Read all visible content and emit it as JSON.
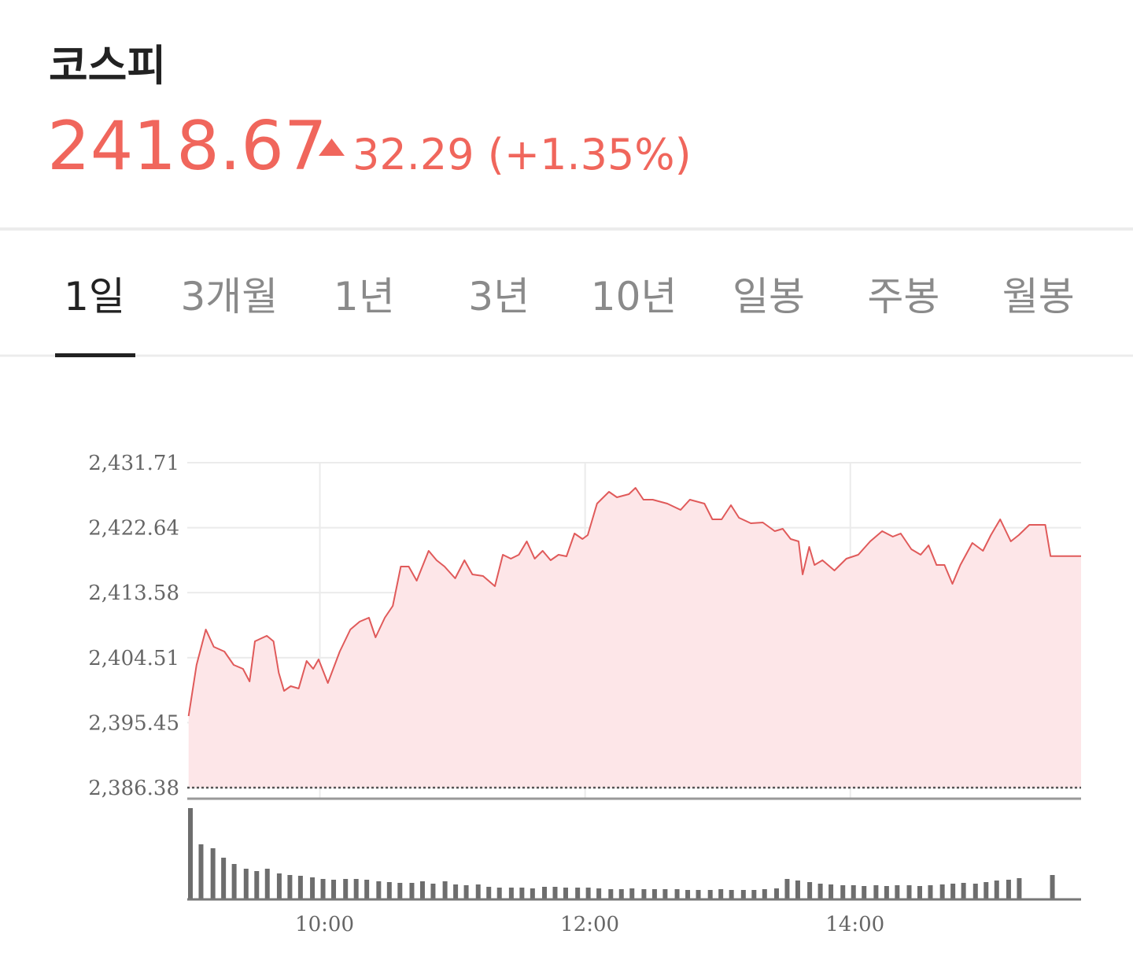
{
  "header": {
    "title": "코스피",
    "price": "2418.67",
    "change": "32.29 (+1.35%)",
    "color": "#f0665c"
  },
  "tabs": {
    "items": [
      "1일",
      "3개월",
      "1년",
      "3년",
      "10년",
      "일봉",
      "주봉",
      "월봉"
    ],
    "selected": 0
  },
  "chart_data": {
    "type": "line",
    "x": [
      9.01,
      9.07,
      9.14,
      9.2,
      9.28,
      9.35,
      9.42,
      9.47,
      9.51,
      9.6,
      9.65,
      9.69,
      9.73,
      9.78,
      9.84,
      9.9,
      9.95,
      9.99,
      10.06,
      10.15,
      10.23,
      10.3,
      10.37,
      10.42,
      10.49,
      10.55,
      10.61,
      10.67,
      10.73,
      10.82,
      10.88,
      10.94,
      11.02,
      11.09,
      11.15,
      11.23,
      11.32,
      11.38,
      11.44,
      11.5,
      11.56,
      11.62,
      11.68,
      11.74,
      11.8,
      11.86,
      11.92,
      11.98,
      12.02,
      12.09,
      12.18,
      12.24,
      12.33,
      12.38,
      12.44,
      12.51,
      12.62,
      12.72,
      12.79,
      12.9,
      12.96,
      13.03,
      13.1,
      13.16,
      13.25,
      13.34,
      13.43,
      13.49,
      13.55,
      13.61,
      13.64,
      13.69,
      13.73,
      13.79,
      13.88,
      13.97,
      14.06,
      14.15,
      14.24,
      14.32,
      14.38,
      14.46,
      14.53,
      14.59,
      14.65,
      14.71,
      14.77,
      14.83,
      14.92,
      15.0,
      15.06,
      15.13,
      15.21,
      15.27,
      15.35,
      15.47,
      15.51,
      15.74
    ],
    "values": [
      2396.37,
      2403.5,
      2408.44,
      2406.03,
      2405.37,
      2403.5,
      2402.95,
      2401.2,
      2406.8,
      2407.56,
      2406.8,
      2402.4,
      2399.88,
      2400.54,
      2400.21,
      2404.05,
      2402.95,
      2404.27,
      2400.98,
      2405.37,
      2408.44,
      2409.54,
      2410.09,
      2407.34,
      2410.09,
      2411.73,
      2417.22,
      2417.22,
      2415.25,
      2419.42,
      2418.1,
      2417.22,
      2415.58,
      2418.1,
      2416.12,
      2415.91,
      2414.48,
      2418.87,
      2418.32,
      2418.87,
      2420.73,
      2418.32,
      2419.42,
      2418.1,
      2418.87,
      2418.65,
      2421.83,
      2421.06,
      2421.61,
      2426.0,
      2427.65,
      2426.88,
      2427.32,
      2428.2,
      2426.55,
      2426.55,
      2426.0,
      2425.13,
      2426.55,
      2426.0,
      2423.81,
      2423.81,
      2425.78,
      2424.03,
      2423.26,
      2423.37,
      2422.16,
      2422.49,
      2421.06,
      2420.73,
      2416.12,
      2419.97,
      2417.44,
      2418.1,
      2416.67,
      2418.32,
      2418.87,
      2420.73,
      2422.16,
      2421.39,
      2421.83,
      2419.64,
      2418.87,
      2420.19,
      2417.44,
      2417.44,
      2414.81,
      2417.44,
      2420.52,
      2419.42,
      2421.61,
      2423.81,
      2420.73,
      2421.61,
      2423.04,
      2423.04,
      2418.67,
      2418.67
    ],
    "color": "#e05a5a",
    "fill": "#fde6e8",
    "xlim": [
      9,
      15.74
    ],
    "ylim": [
      2386.38,
      2431.71
    ],
    "yticks": [
      {
        "value": 2386.38,
        "label": "2,386.38"
      },
      {
        "value": 2395.45,
        "label": "2,395.45"
      },
      {
        "value": 2404.51,
        "label": "2,404.51"
      },
      {
        "value": 2413.58,
        "label": "2,413.58"
      },
      {
        "value": 2422.64,
        "label": "2,422.64"
      },
      {
        "value": 2431.71,
        "label": "2,431.71"
      }
    ],
    "xticks": [
      {
        "value": 10,
        "label": "10:00"
      },
      {
        "value": 12,
        "label": "12:00"
      },
      {
        "value": 14,
        "label": "14:00"
      }
    ],
    "grid": true,
    "volume": {
      "type": "bar",
      "color": "#6d6d6d",
      "x": [
        9.0,
        9.08,
        9.17,
        9.25,
        9.33,
        9.42,
        9.5,
        9.58,
        9.67,
        9.75,
        9.83,
        9.92,
        10.0,
        10.08,
        10.17,
        10.25,
        10.33,
        10.42,
        10.5,
        10.58,
        10.67,
        10.75,
        10.83,
        10.92,
        11.0,
        11.08,
        11.17,
        11.25,
        11.33,
        11.42,
        11.5,
        11.58,
        11.67,
        11.75,
        11.83,
        11.92,
        12.0,
        12.08,
        12.17,
        12.25,
        12.33,
        12.42,
        12.5,
        12.58,
        12.67,
        12.75,
        12.83,
        12.92,
        13.0,
        13.08,
        13.17,
        13.25,
        13.33,
        13.42,
        13.5,
        13.58,
        13.67,
        13.75,
        13.83,
        13.92,
        14.0,
        14.08,
        14.17,
        14.25,
        14.33,
        14.42,
        14.5,
        14.58,
        14.67,
        14.75,
        14.83,
        14.92,
        15.0,
        15.08,
        15.17,
        15.25,
        15.5
      ],
      "values": [
        116,
        70,
        65,
        53,
        45,
        39,
        36,
        39,
        33,
        31,
        30,
        28,
        26,
        25,
        26,
        26,
        25,
        23,
        22,
        21,
        21,
        23,
        20,
        23,
        19,
        18,
        19,
        16,
        15,
        15,
        15,
        14,
        16,
        16,
        15,
        15,
        15,
        14,
        13,
        13,
        14,
        13,
        13,
        13,
        13,
        12,
        12,
        12,
        13,
        12,
        12,
        12,
        13,
        14,
        26,
        24,
        22,
        20,
        19,
        18,
        18,
        17,
        18,
        17,
        18,
        18,
        17,
        18,
        19,
        20,
        21,
        20,
        22,
        24,
        25,
        27,
        31
      ]
    }
  }
}
